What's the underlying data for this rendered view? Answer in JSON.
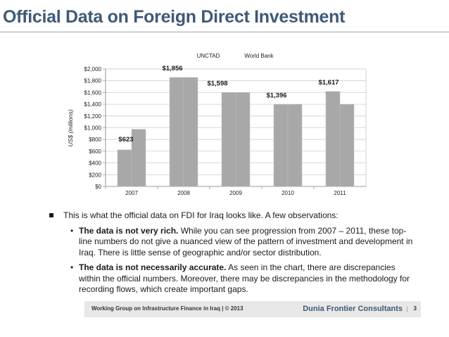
{
  "slide": {
    "title": "Official Data on Foreign Direct Investment"
  },
  "chart_data": {
    "type": "bar",
    "title": "",
    "xlabel": "",
    "ylabel": "US$ (millions)",
    "ylim": [
      0,
      2000
    ],
    "yticks": [
      "$0",
      "$200",
      "$400",
      "$600",
      "$800",
      "$1,000",
      "$1,200",
      "$1,400",
      "$1,600",
      "$1,800",
      "$2,000"
    ],
    "categories": [
      "2007",
      "2008",
      "2009",
      "2010",
      "2011"
    ],
    "series": [
      {
        "name": "UNCTAD",
        "values": [
          623,
          1856,
          1598,
          1396,
          1617
        ],
        "color": "#a8a8a8"
      },
      {
        "name": "World Bank",
        "values": [
          972,
          1856,
          1598,
          1396,
          1396
        ],
        "color": "#a8a8a8"
      }
    ],
    "data_labels": [
      "$623",
      "$1,856",
      "$1,598",
      "$1,396",
      "$1,617"
    ],
    "legend": [
      "UNCTAD",
      "World Bank"
    ],
    "legend_position": "top-right",
    "grid": true
  },
  "bullets": {
    "main": "This is what the official data on FDI for Iraq looks like.  A few observations:",
    "points": [
      {
        "bold": "The data is not very rich.",
        "text": "  While you can see progression from 2007 – 2011, these top-line numbers do not give a nuanced view of the pattern of investment and development in Iraq.  There is little sense of geographic and/or sector distribution."
      },
      {
        "bold": "The data is not necessarily accurate.",
        "text": " As seen in the chart, there are discrepancies within the official numbers.  Moreover, there may be discrepancies in the methodology for recording flows, which create important gaps."
      }
    ],
    "bullet_char": "•"
  },
  "footer": {
    "left": "Working Group on Infrastructure Finance in Iraq | © 2013",
    "right": "Dunia Frontier Consultants",
    "separator": "|",
    "page": "3"
  }
}
